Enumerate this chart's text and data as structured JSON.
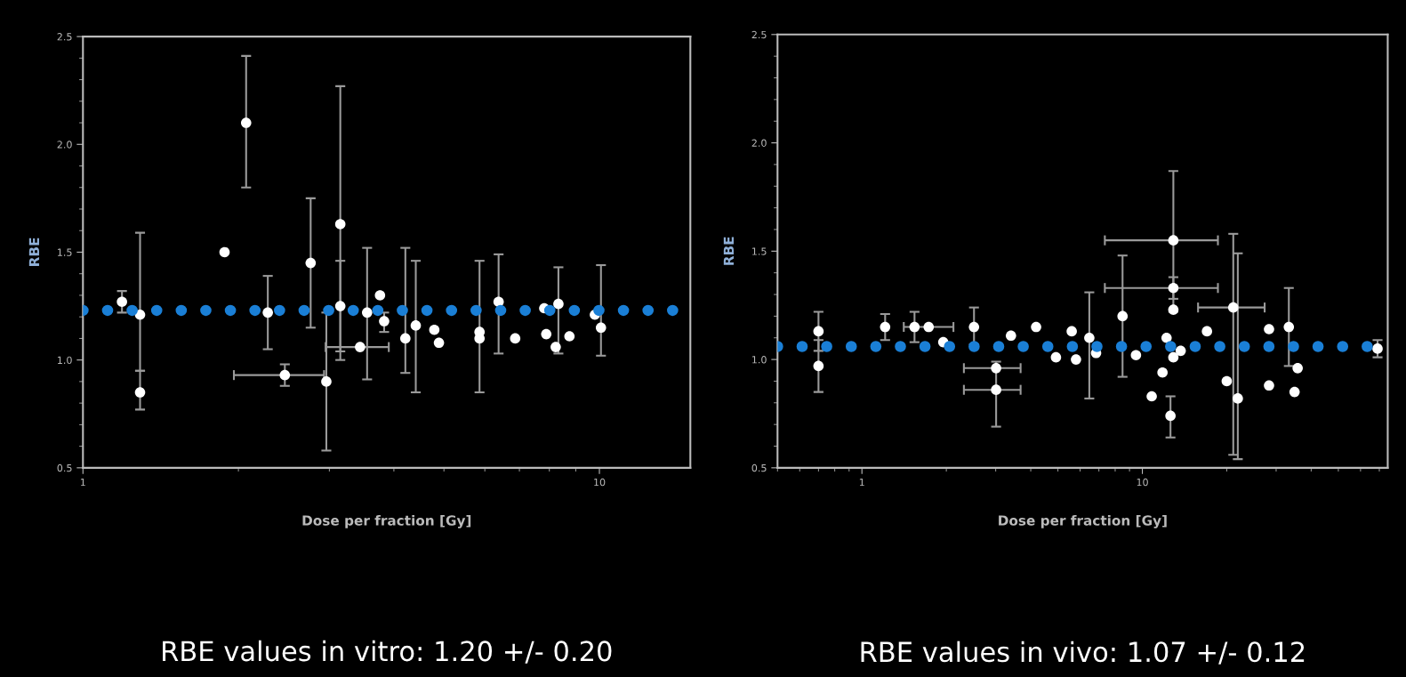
{
  "chart_data": [
    {
      "type": "scatter",
      "xlabel": "Dose per fraction [Gy]",
      "ylabel": "RBE",
      "log": "x",
      "xlim": [
        1,
        15
      ],
      "xticks": [
        1,
        10
      ],
      "ylim": [
        0.5,
        2.5
      ],
      "yticks": [
        {
          "value": 0.5,
          "label": "0.5"
        },
        {
          "value": 1,
          "label": "1.0"
        },
        {
          "value": 1.5,
          "label": "1.5"
        },
        {
          "value": 2,
          "label": "2.0"
        },
        {
          "value": 2.5,
          "label": "2.5"
        }
      ],
      "grid": false,
      "marker": "circle",
      "series": [
        {
          "color": "#ffffff",
          "x": [
            1.19,
            1.29,
            1.29,
            1.88,
            2.07,
            2.28,
            2.46,
            2.76,
            2.96,
            3.15,
            3.15,
            3.44,
            3.55,
            3.76,
            3.83,
            4.21,
            4.41,
            4.79,
            4.89,
            5.86,
            5.86,
            6.38,
            6.87,
            7.82,
            7.89,
            8.23,
            8.33,
            8.75,
            9.8,
            10.07
          ],
          "values": [
            1.27,
            1.21,
            0.85,
            1.5,
            2.1,
            1.22,
            0.93,
            1.45,
            0.9,
            1.63,
            1.25,
            1.06,
            1.22,
            1.3,
            1.18,
            1.1,
            1.16,
            1.14,
            1.08,
            1.13,
            1.1,
            1.27,
            1.1,
            1.24,
            1.12,
            1.06,
            1.26,
            1.11,
            1.21,
            1.15
          ],
          "errors": [
            [
              1.22,
              1.32
            ],
            [
              0.95,
              1.59
            ],
            [
              0.77,
              0.95
            ],
            null,
            [
              1.8,
              2.41
            ],
            [
              1.05,
              1.39
            ],
            [
              0.88,
              0.98
            ],
            [
              1.15,
              1.75
            ],
            [
              0.58,
              1.22
            ],
            [
              1.0,
              2.27
            ],
            [
              1.04,
              1.46
            ],
            null,
            [
              0.91,
              1.52
            ],
            null,
            [
              1.13,
              1.22
            ],
            [
              0.94,
              1.52
            ],
            [
              0.85,
              1.46
            ],
            null,
            null,
            [
              0.85,
              1.46
            ],
            null,
            [
              1.03,
              1.49
            ],
            null,
            null,
            null,
            null,
            [
              1.03,
              1.43
            ],
            null,
            null,
            [
              1.02,
              1.44
            ]
          ],
          "xerrors": [
            null,
            null,
            null,
            null,
            null,
            null,
            [
              1.96,
              2.93
            ],
            null,
            null,
            null,
            null,
            [
              2.95,
              3.91
            ],
            null,
            null,
            null,
            null,
            null,
            null,
            null,
            null,
            null,
            null,
            null,
            null,
            null,
            null,
            null,
            null,
            null,
            null
          ]
        }
      ],
      "ref_lines": [
        {
          "axis": "y",
          "value": 1.23,
          "color": "#1a7fd6",
          "line_style": "dotted"
        }
      ],
      "annotations": [
        "RBE values in vitro: 1.20 +/- 0.20"
      ]
    },
    {
      "type": "scatter",
      "xlabel": "Dose per fraction [Gy]",
      "ylabel": "RBE",
      "log": "x",
      "xlim": [
        0.5,
        75
      ],
      "xticks": [
        1,
        10
      ],
      "ylim": [
        0.5,
        2.5
      ],
      "yticks": [
        {
          "value": 0.5,
          "label": "0.5"
        },
        {
          "value": 1,
          "label": "1.0"
        },
        {
          "value": 1.5,
          "label": "1.5"
        },
        {
          "value": 2,
          "label": "2.0"
        },
        {
          "value": 2.5,
          "label": "2.5"
        }
      ],
      "grid": false,
      "marker": "circle",
      "series": [
        {
          "color": "#ffffff",
          "x": [
            0.7,
            0.7,
            1.21,
            1.54,
            1.73,
            1.95,
            2.51,
            3.01,
            3.01,
            3.4,
            4.18,
            4.92,
            5.6,
            5.8,
            6.47,
            6.84,
            8.5,
            9.49,
            10.8,
            11.8,
            12.9,
            12.9,
            12.9,
            12.2,
            12.9,
            12.6,
            13.7,
            17.0,
            21.1,
            21.9,
            20.0,
            28.3,
            28.3,
            33.3,
            34.9,
            35.8,
            69.0
          ],
          "values": [
            1.13,
            0.97,
            1.15,
            1.15,
            1.15,
            1.08,
            1.15,
            0.96,
            0.86,
            1.11,
            1.15,
            1.01,
            1.13,
            1.0,
            1.1,
            1.03,
            1.2,
            1.02,
            0.83,
            0.94,
            1.55,
            1.33,
            1.23,
            1.1,
            1.01,
            0.74,
            1.04,
            1.13,
            1.24,
            0.82,
            0.9,
            1.14,
            0.88,
            1.15,
            0.85,
            0.96,
            1.05
          ],
          "errors": [
            [
              1.04,
              1.22
            ],
            [
              0.85,
              1.09
            ],
            [
              1.09,
              1.21
            ],
            [
              1.08,
              1.22
            ],
            null,
            null,
            [
              1.07,
              1.24
            ],
            null,
            [
              0.69,
              0.99
            ],
            null,
            null,
            null,
            null,
            null,
            [
              0.82,
              1.31
            ],
            null,
            [
              0.92,
              1.48
            ],
            null,
            null,
            null,
            [
              1.22,
              1.87
            ],
            [
              1.28,
              1.38
            ],
            null,
            null,
            null,
            [
              0.64,
              0.83
            ],
            null,
            null,
            [
              0.56,
              1.58
            ],
            [
              0.54,
              1.49
            ],
            null,
            null,
            null,
            [
              0.97,
              1.33
            ],
            null,
            null,
            [
              1.01,
              1.09
            ]
          ],
          "xerrors": [
            null,
            null,
            null,
            [
              1.41,
              2.12
            ],
            null,
            null,
            null,
            [
              2.31,
              3.68
            ],
            [
              2.31,
              3.68
            ],
            null,
            null,
            null,
            null,
            null,
            null,
            null,
            null,
            null,
            null,
            null,
            [
              7.35,
              18.6
            ],
            [
              7.35,
              18.6
            ],
            null,
            null,
            null,
            null,
            null,
            null,
            [
              15.8,
              27.3
            ],
            null,
            null,
            null,
            null,
            null,
            null,
            null,
            null
          ]
        }
      ],
      "ref_lines": [
        {
          "axis": "y",
          "value": 1.06,
          "color": "#1a7fd6",
          "line_style": "dotted"
        }
      ],
      "annotations": [
        "RBE values in vivo: 1.07 +/- 0.12"
      ]
    }
  ]
}
